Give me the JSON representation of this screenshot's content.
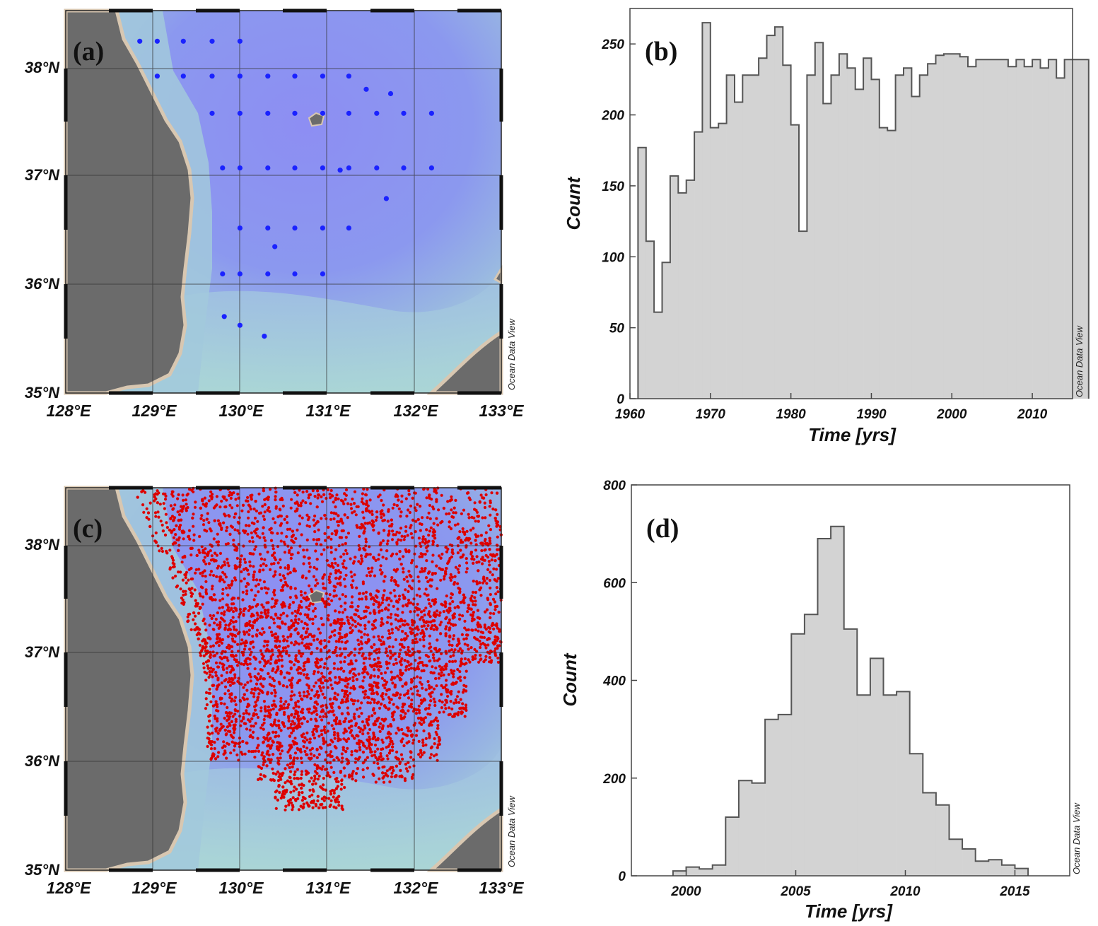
{
  "credit": "Ocean Data View",
  "colors": {
    "land": "#6b6b6b",
    "coast": "#d8c7b1",
    "deep_water": "#8b8ff2",
    "shallow_water": "#a7d3d8",
    "station_blue": "#1a22ff",
    "point_red": "#dd0000",
    "histogram_fill": "#d3d3d3",
    "histogram_edge": "#555555"
  },
  "map_a": {
    "label": "(a)",
    "lon_ticks": [
      "128°E",
      "129°E",
      "130°E",
      "131°E",
      "132°E",
      "133°E"
    ],
    "lat_ticks": [
      "35°N",
      "36°N",
      "37°N",
      "38°N"
    ],
    "lon_range": [
      128,
      133
    ],
    "lat_range": [
      35,
      38.5
    ],
    "station_marker": "blue-dot",
    "stations": [
      [
        128.85,
        38.22
      ],
      [
        129.05,
        38.22
      ],
      [
        129.35,
        38.22
      ],
      [
        129.68,
        38.22
      ],
      [
        130.0,
        38.22
      ],
      [
        129.05,
        37.9
      ],
      [
        129.35,
        37.9
      ],
      [
        129.68,
        37.9
      ],
      [
        130.0,
        37.9
      ],
      [
        130.32,
        37.9
      ],
      [
        130.63,
        37.9
      ],
      [
        130.95,
        37.9
      ],
      [
        131.25,
        37.9
      ],
      [
        131.45,
        37.78
      ],
      [
        131.73,
        37.74
      ],
      [
        129.68,
        37.56
      ],
      [
        130.0,
        37.56
      ],
      [
        130.32,
        37.56
      ],
      [
        130.63,
        37.56
      ],
      [
        130.95,
        37.56
      ],
      [
        131.25,
        37.56
      ],
      [
        131.57,
        37.56
      ],
      [
        131.88,
        37.56
      ],
      [
        132.2,
        37.56
      ],
      [
        129.8,
        37.06
      ],
      [
        130.0,
        37.06
      ],
      [
        130.32,
        37.06
      ],
      [
        130.63,
        37.06
      ],
      [
        130.95,
        37.06
      ],
      [
        131.15,
        37.04
      ],
      [
        131.25,
        37.06
      ],
      [
        131.57,
        37.06
      ],
      [
        131.88,
        37.06
      ],
      [
        132.2,
        37.06
      ],
      [
        131.68,
        36.78
      ],
      [
        130.0,
        36.51
      ],
      [
        130.32,
        36.51
      ],
      [
        130.63,
        36.51
      ],
      [
        130.95,
        36.51
      ],
      [
        131.25,
        36.51
      ],
      [
        130.4,
        36.34
      ],
      [
        129.8,
        36.09
      ],
      [
        130.0,
        36.09
      ],
      [
        130.32,
        36.09
      ],
      [
        130.63,
        36.09
      ],
      [
        130.95,
        36.09
      ],
      [
        129.82,
        35.7
      ],
      [
        130.0,
        35.62
      ],
      [
        130.28,
        35.52
      ]
    ]
  },
  "map_c": {
    "label": "(c)",
    "lon_ticks": [
      "128°E",
      "129°E",
      "130°E",
      "131°E",
      "132°E",
      "133°E"
    ],
    "lat_ticks": [
      "35°N",
      "36°N",
      "37°N",
      "38°N"
    ],
    "lon_range": [
      128,
      133
    ],
    "lat_range": [
      35,
      38.5
    ],
    "point_marker": "red-dot"
  },
  "chart_data": [
    {
      "id": "b",
      "type": "bar",
      "label": "(b)",
      "title": "",
      "xlabel": "Time [yrs]",
      "ylabel": "Count",
      "xlim": [
        1960,
        2015
      ],
      "ylim": [
        0,
        275
      ],
      "xticks": [
        1960,
        1970,
        1980,
        1990,
        2000,
        2010
      ],
      "yticks": [
        0,
        50,
        100,
        150,
        200,
        250
      ],
      "bin_start": 1961,
      "bin_width": 1,
      "values": [
        177,
        111,
        61,
        96,
        157,
        145,
        154,
        188,
        265,
        191,
        194,
        228,
        209,
        228,
        228,
        240,
        256,
        262,
        235,
        193,
        118,
        228,
        251,
        208,
        228,
        243,
        233,
        218,
        240,
        225,
        191,
        189,
        228,
        233,
        213,
        228,
        236,
        242,
        243,
        243,
        241,
        234,
        239,
        239,
        239,
        239,
        234,
        239,
        234,
        239,
        233,
        239,
        226,
        239,
        239,
        239
      ]
    },
    {
      "id": "d",
      "type": "bar",
      "label": "(d)",
      "title": "",
      "xlabel": "Time [yrs]",
      "ylabel": "Count",
      "xlim": [
        1997.5,
        2017.5
      ],
      "ylim": [
        0,
        800
      ],
      "xticks": [
        2000,
        2005,
        2010,
        2015
      ],
      "yticks": [
        0,
        200,
        400,
        600,
        800
      ],
      "bin_start": 1999.4,
      "bin_width": 0.6,
      "values": [
        10,
        18,
        14,
        22,
        120,
        195,
        190,
        320,
        330,
        495,
        535,
        690,
        715,
        505,
        370,
        445,
        370,
        377,
        250,
        170,
        145,
        75,
        55,
        30,
        33,
        22,
        15
      ]
    }
  ]
}
